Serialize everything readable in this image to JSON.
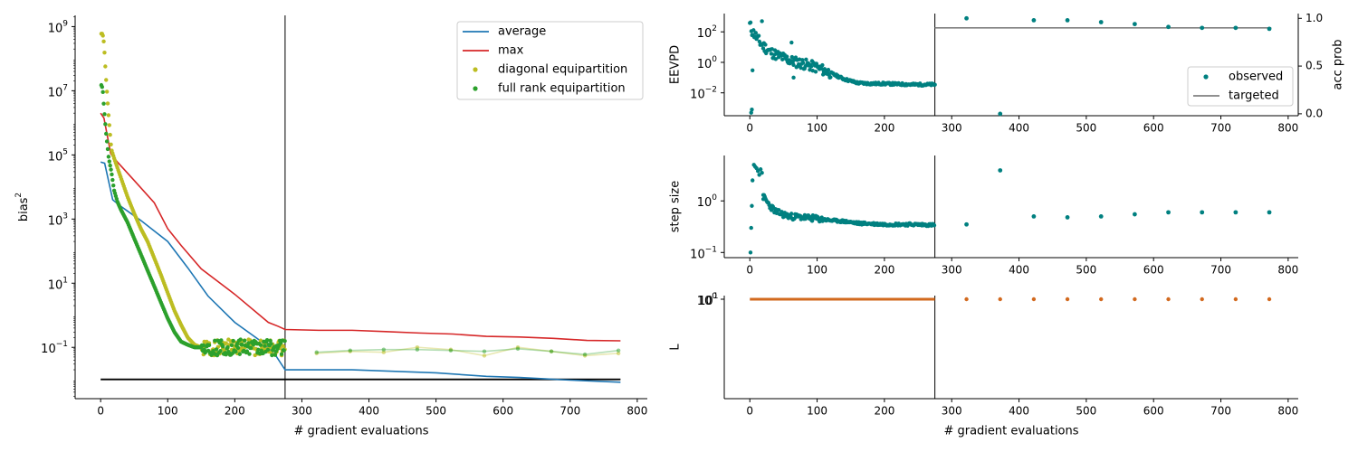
{
  "chart_data": [
    {
      "type": "line",
      "id": "bias",
      "xlabel": "# gradient evaluations",
      "ylabel": "bias",
      "ylabel_sup": "2",
      "xlim": [
        -38,
        815
      ],
      "ylim_log10": [
        -2.6,
        9.35
      ],
      "xticks": [
        0,
        100,
        200,
        300,
        400,
        500,
        600,
        700,
        800
      ],
      "yticks": [
        {
          "e": -1,
          "label": "10",
          "sup": "−1"
        },
        {
          "e": 1,
          "label": "10",
          "sup": "1"
        },
        {
          "e": 3,
          "label": "10",
          "sup": "3"
        },
        {
          "e": 5,
          "label": "10",
          "sup": "5"
        },
        {
          "e": 7,
          "label": "10",
          "sup": "7"
        },
        {
          "e": 9,
          "label": "10",
          "sup": "9"
        }
      ],
      "vline_x": 275,
      "hline_y": 0.01,
      "legend": {
        "placement": "top-right",
        "entries": [
          "average",
          "max",
          "diagonal equipartition",
          "full rank equipartition"
        ]
      },
      "colors": {
        "average": "#1f77b4",
        "max": "#d62728",
        "diag": "#bcbd22",
        "full": "#2ca02c",
        "line": "#000000"
      },
      "series": [
        {
          "name": "average",
          "kind": "line",
          "x": [
            0,
            6,
            18,
            30,
            60,
            100,
            130,
            160,
            200,
            240,
            260,
            275,
            325,
            375,
            500,
            575,
            625,
            700,
            775
          ],
          "y": [
            60000,
            55000,
            4000,
            2500,
            900,
            200,
            30,
            4,
            0.6,
            0.15,
            0.06,
            0.02,
            0.02,
            0.02,
            0.016,
            0.0125,
            0.0115,
            0.0095,
            0.0082
          ]
        },
        {
          "name": "max",
          "kind": "line",
          "x": [
            0,
            5,
            15,
            25,
            50,
            80,
            100,
            120,
            150,
            200,
            250,
            265,
            275,
            325,
            375,
            425,
            475,
            525,
            575,
            625,
            675,
            725,
            775
          ],
          "y": [
            2000000,
            1400000,
            110000,
            60000,
            16000,
            3200,
            500,
            150,
            28,
            4.5,
            0.6,
            0.45,
            0.36,
            0.34,
            0.34,
            0.31,
            0.28,
            0.26,
            0.22,
            0.21,
            0.19,
            0.165,
            0.16
          ]
        },
        {
          "name": "diagonal equipartition",
          "kind": "scatter_curve",
          "x": [
            1,
            3,
            5,
            8,
            12,
            16,
            20,
            25,
            30,
            40,
            50,
            60,
            70,
            80,
            90,
            100,
            110,
            120,
            130,
            140,
            150,
            160,
            180,
            200,
            220,
            240,
            260,
            275
          ],
          "y": [
            600000000,
            600000000,
            300000000,
            25000000,
            1500000,
            150000,
            80000,
            40000,
            20000,
            5000,
            1500,
            500,
            200,
            60,
            18,
            5,
            1.4,
            0.5,
            0.2,
            0.12,
            0.1,
            0.1,
            0.1,
            0.1,
            0.1,
            0.1,
            0.1,
            0.1
          ]
        },
        {
          "name": "full rank equipartition",
          "kind": "scatter_curve",
          "x": [
            1,
            3,
            5,
            8,
            12,
            16,
            20,
            25,
            30,
            40,
            50,
            60,
            70,
            80,
            90,
            100,
            110,
            120,
            130,
            140,
            150,
            160,
            180,
            200,
            220,
            240,
            260,
            275
          ],
          "y": [
            15000000,
            12000000,
            3000000,
            500000,
            80000,
            30000,
            8000,
            3500,
            2000,
            800,
            250,
            80,
            25,
            8,
            2.5,
            0.8,
            0.3,
            0.15,
            0.12,
            0.1,
            0.1,
            0.1,
            0.1,
            0.1,
            0.1,
            0.1,
            0.1,
            0.1
          ]
        },
        {
          "name": "diagonal equipartition (after warmup)",
          "kind": "faint_line",
          "x": [
            322,
            372,
            422,
            472,
            522,
            572,
            622,
            672,
            722,
            772
          ],
          "y": [
            0.065,
            0.075,
            0.07,
            0.1,
            0.085,
            0.055,
            0.1,
            0.075,
            0.055,
            0.065
          ]
        },
        {
          "name": "full rank equipartition (after warmup)",
          "kind": "faint_line",
          "x": [
            322,
            372,
            422,
            472,
            522,
            572,
            622,
            672,
            722,
            772
          ],
          "y": [
            0.07,
            0.08,
            0.085,
            0.085,
            0.08,
            0.075,
            0.09,
            0.075,
            0.06,
            0.08
          ]
        }
      ]
    },
    {
      "type": "scatter",
      "id": "eevpd",
      "ylabel": "EEVPD",
      "ylabel_right": "acc prob",
      "xlim": [
        -38,
        815
      ],
      "ylim_log10": [
        -3.5,
        3.2
      ],
      "ylim_right": [
        -0.02,
        1.05
      ],
      "xticks": [
        0,
        100,
        200,
        300,
        400,
        500,
        600,
        700,
        800
      ],
      "yticks_left": [
        {
          "e": -2,
          "label": "10",
          "sup": "−2"
        },
        {
          "e": 0,
          "label": "10",
          "sup": "0"
        },
        {
          "e": 2,
          "label": "10",
          "sup": "2"
        }
      ],
      "yticks_right": [
        {
          "v": 0.0,
          "label": "0.0"
        },
        {
          "v": 0.5,
          "label": "0.5"
        },
        {
          "v": 1.0,
          "label": "1.0"
        }
      ],
      "vline_x": 275,
      "legend": {
        "placement": "center-right",
        "entries": [
          "observed",
          "targeted"
        ]
      },
      "colors": {
        "observed": "#008080",
        "targeted": "#808080"
      },
      "targeted": {
        "x": [
          275,
          775
        ],
        "y": 0.9
      },
      "observed_acc": {
        "x": [
          322,
          372,
          422,
          472,
          522,
          572,
          622,
          672,
          722,
          772
        ],
        "y": [
          1.0,
          0.0,
          0.98,
          0.98,
          0.96,
          0.94,
          0.91,
          0.9,
          0.9,
          0.89
        ]
      },
      "series": [
        {
          "name": "EEVPD",
          "x": [
            0,
            3,
            8,
            15,
            20,
            30,
            40,
            50,
            60,
            70,
            80,
            90,
            100,
            120,
            140,
            160,
            180,
            200,
            240,
            275
          ],
          "y": [
            300,
            120,
            60,
            20,
            12,
            5,
            3,
            2,
            1.3,
            1,
            0.8,
            0.6,
            0.45,
            0.2,
            0.08,
            0.045,
            0.04,
            0.04,
            0.035,
            0.035
          ]
        }
      ]
    },
    {
      "type": "scatter",
      "id": "stepsize",
      "ylabel": "step size",
      "xlim": [
        -38,
        815
      ],
      "ylim_log10": [
        -1.1,
        0.88
      ],
      "xticks": [
        0,
        100,
        200,
        300,
        400,
        500,
        600,
        700,
        800
      ],
      "yticks": [
        {
          "e": -1,
          "label": "10",
          "sup": "−1"
        },
        {
          "e": 0,
          "label": "10",
          "sup": "0"
        }
      ],
      "vline_x": 275,
      "colors": {
        "points": "#008080"
      },
      "series": [
        {
          "name": "step size",
          "x": [
            0,
            4,
            8,
            12,
            16,
            20,
            30,
            40,
            60,
            80,
            100,
            120,
            140,
            160,
            180,
            200,
            240,
            275,
            322,
            372,
            422,
            472,
            522,
            572,
            622,
            672,
            722,
            772
          ],
          "y": [
            0.5,
            5.0,
            4.8,
            4.0,
            3.0,
            1.2,
            0.8,
            0.6,
            0.5,
            0.48,
            0.45,
            0.42,
            0.4,
            0.37,
            0.36,
            0.35,
            0.35,
            0.34,
            0.35,
            3.9,
            0.5,
            0.48,
            0.5,
            0.55,
            0.6,
            0.6,
            0.6,
            0.6
          ]
        }
      ]
    },
    {
      "type": "scatter",
      "id": "L",
      "ylabel": "L",
      "xlabel": "# gradient evaluations",
      "xlim": [
        -38,
        815
      ],
      "xticks": [
        0,
        100,
        200,
        300,
        400,
        500,
        600,
        700,
        800
      ],
      "ytick_overlap_labels": [
        {
          "label": "10",
          "sup": "0"
        },
        {
          "label": "10",
          "sup": "1"
        }
      ],
      "vline_x": 275,
      "colors": {
        "points": "#d2691e"
      },
      "series": [
        {
          "name": "L",
          "x": [
            0,
            275,
            322,
            372,
            422,
            472,
            522,
            572,
            622,
            672,
            722,
            772
          ],
          "y": [
            1,
            1,
            1,
            1,
            1,
            1,
            1,
            1,
            1,
            1,
            1,
            1
          ]
        }
      ]
    }
  ]
}
